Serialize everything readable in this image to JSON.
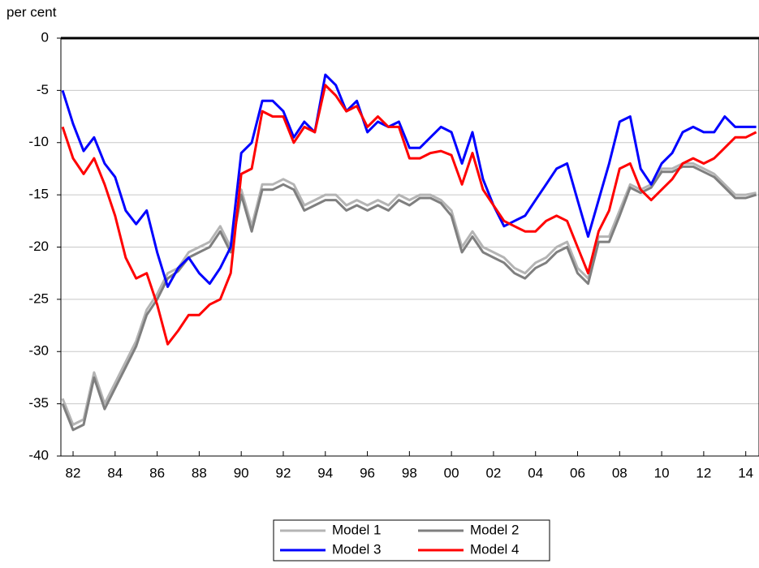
{
  "chart_data": {
    "type": "line",
    "y_label": "per cent",
    "x": [
      1982,
      1982.5,
      1983,
      1983.5,
      1984,
      1984.5,
      1985,
      1985.5,
      1986,
      1986.5,
      1987,
      1987.5,
      1988,
      1988.5,
      1989,
      1989.5,
      1990,
      1990.5,
      1991,
      1991.5,
      1992,
      1992.5,
      1993,
      1993.5,
      1994,
      1994.5,
      1995,
      1995.5,
      1996,
      1996.5,
      1997,
      1997.5,
      1998,
      1998.5,
      1999,
      1999.5,
      2000,
      2000.5,
      2001,
      2001.5,
      2002,
      2002.5,
      2003,
      2003.5,
      2004,
      2004.5,
      2005,
      2005.5,
      2006,
      2006.5,
      2007,
      2007.5,
      2008,
      2008.5,
      2009,
      2009.5,
      2010,
      2010.5,
      2011,
      2011.5,
      2012,
      2012.5,
      2013,
      2013.5,
      2014,
      2014.5,
      2015
    ],
    "xlim": [
      1981.92,
      2015.13
    ],
    "xticks": [
      {
        "value": 1982.5,
        "label": "82"
      },
      {
        "value": 1984.5,
        "label": "84"
      },
      {
        "value": 1986.5,
        "label": "86"
      },
      {
        "value": 1988.5,
        "label": "88"
      },
      {
        "value": 1990.5,
        "label": "90"
      },
      {
        "value": 1992.5,
        "label": "92"
      },
      {
        "value": 1994.5,
        "label": "94"
      },
      {
        "value": 1996.5,
        "label": "96"
      },
      {
        "value": 1998.5,
        "label": "98"
      },
      {
        "value": 2000.5,
        "label": "00"
      },
      {
        "value": 2002.5,
        "label": "02"
      },
      {
        "value": 2004.5,
        "label": "04"
      },
      {
        "value": 2006.5,
        "label": "06"
      },
      {
        "value": 2008.5,
        "label": "08"
      },
      {
        "value": 2010.5,
        "label": "10"
      },
      {
        "value": 2012.5,
        "label": "12"
      },
      {
        "value": 2014.5,
        "label": "14"
      }
    ],
    "ylim": [
      -40,
      0
    ],
    "yticks": [
      0,
      -5,
      -10,
      -15,
      -20,
      -25,
      -30,
      -35,
      -40
    ],
    "grid": true,
    "series": [
      {
        "name": "Model 1",
        "color": "#b4b4b4",
        "values": [
          -34.5,
          -37,
          -36.5,
          -32,
          -35,
          -33,
          -31,
          -29,
          -26,
          -24.5,
          -22.5,
          -22,
          -20.5,
          -20,
          -19.5,
          -18,
          -20,
          -14.5,
          -18,
          -14,
          -14,
          -13.5,
          -14,
          -16,
          -15.5,
          -15,
          -15,
          -16,
          -15.5,
          -16,
          -15.5,
          -16,
          -15,
          -15.5,
          -15,
          -15,
          -15.5,
          -16.5,
          -20,
          -18.5,
          -20,
          -20.5,
          -21,
          -22,
          -22.5,
          -21.5,
          -21,
          -20,
          -19.5,
          -22,
          -23,
          -19,
          -19,
          -16.5,
          -14,
          -14.5,
          -14,
          -12.5,
          -12.5,
          -12,
          -12,
          -12.5,
          -13,
          -14,
          -15,
          -15,
          -14.8
        ]
      },
      {
        "name": "Model 2",
        "color": "#7f7f7f",
        "values": [
          -35,
          -37.5,
          -37,
          -32.5,
          -35.5,
          -33.5,
          -31.5,
          -29.5,
          -26.5,
          -25,
          -23,
          -22.3,
          -21,
          -20.5,
          -20,
          -18.5,
          -20.5,
          -15,
          -18.5,
          -14.5,
          -14.5,
          -14,
          -14.5,
          -16.5,
          -16,
          -15.5,
          -15.5,
          -16.5,
          -16,
          -16.5,
          -16,
          -16.5,
          -15.5,
          -16,
          -15.3,
          -15.3,
          -15.8,
          -17,
          -20.5,
          -19,
          -20.5,
          -21,
          -21.5,
          -22.5,
          -23,
          -22,
          -21.5,
          -20.5,
          -20,
          -22.5,
          -23.5,
          -19.5,
          -19.5,
          -17,
          -14.3,
          -14.8,
          -14.3,
          -12.8,
          -12.8,
          -12.3,
          -12.3,
          -12.8,
          -13.3,
          -14.3,
          -15.3,
          -15.3,
          -15
        ]
      },
      {
        "name": "Model 3",
        "color": "#0000ff",
        "values": [
          -5,
          -8.2,
          -10.8,
          -9.5,
          -12,
          -13.3,
          -16.5,
          -17.8,
          -16.5,
          -20.5,
          -23.8,
          -22,
          -21,
          -22.5,
          -23.5,
          -22,
          -20,
          -11,
          -10,
          -6,
          -6,
          -7,
          -9.5,
          -8,
          -9,
          -3.5,
          -4.5,
          -7,
          -6,
          -9,
          -8,
          -8.5,
          -8,
          -10.5,
          -10.5,
          -9.5,
          -8.5,
          -9,
          -12,
          -9,
          -13.5,
          -16,
          -18,
          -17.5,
          -17,
          -15.5,
          -14,
          -12.5,
          -12,
          -15.5,
          -19,
          -15.5,
          -12,
          -8,
          -7.5,
          -12.5,
          -14,
          -12,
          -11,
          -9,
          -8.5,
          -9,
          -9,
          -7.5,
          -8.5,
          -8.5,
          -8.5
        ]
      },
      {
        "name": "Model 4",
        "color": "#ff0000",
        "values": [
          -8.5,
          -11.5,
          -13,
          -11.5,
          -14,
          -17,
          -21,
          -23,
          -22.5,
          -25.5,
          -29.3,
          -28,
          -26.5,
          -26.5,
          -25.5,
          -25,
          -22.5,
          -13,
          -12.5,
          -7,
          -7.5,
          -7.5,
          -10,
          -8.5,
          -9,
          -4.5,
          -5.5,
          -7,
          -6.5,
          -8.5,
          -7.5,
          -8.5,
          -8.5,
          -11.5,
          -11.5,
          -11,
          -10.8,
          -11.2,
          -14,
          -11,
          -14.5,
          -16,
          -17.5,
          -18,
          -18.5,
          -18.5,
          -17.5,
          -17,
          -17.5,
          -20,
          -22.5,
          -18.5,
          -16.5,
          -12.5,
          -12,
          -14.5,
          -15.5,
          -14.5,
          -13.5,
          -12,
          -11.5,
          -12,
          -11.5,
          -10.5,
          -9.5,
          -9.5,
          -9
        ]
      }
    ]
  }
}
